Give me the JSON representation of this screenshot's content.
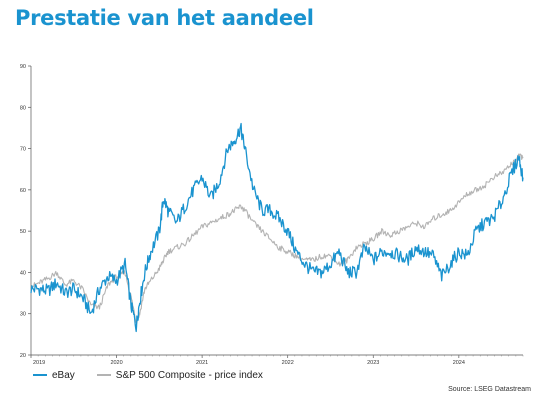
{
  "page": {
    "title": "Prestatie van het aandeel",
    "source": "Source: LSEG Datastream"
  },
  "chart_data": {
    "type": "line",
    "title": "Prestatie van het aandeel",
    "xlabel": "",
    "ylabel": "",
    "xlim": [
      2019.0,
      2024.75
    ],
    "ylim": [
      20,
      90
    ],
    "yticks": [
      20,
      30,
      40,
      50,
      60,
      70,
      80,
      90
    ],
    "xticks": [
      "2019",
      "2020",
      "2021",
      "2022",
      "2023",
      "2024"
    ],
    "grid": false,
    "legend": "bottom-left",
    "x": [
      2019.0,
      2019.1,
      2019.2,
      2019.3,
      2019.4,
      2019.5,
      2019.6,
      2019.7,
      2019.8,
      2019.9,
      2020.0,
      2020.1,
      2020.17,
      2020.23,
      2020.27,
      2020.33,
      2020.4,
      2020.5,
      2020.55,
      2020.6,
      2020.7,
      2020.8,
      2020.9,
      2021.0,
      2021.1,
      2021.2,
      2021.3,
      2021.38,
      2021.45,
      2021.5,
      2021.6,
      2021.7,
      2021.8,
      2021.9,
      2022.0,
      2022.1,
      2022.2,
      2022.3,
      2022.4,
      2022.5,
      2022.6,
      2022.7,
      2022.8,
      2022.9,
      2023.0,
      2023.1,
      2023.2,
      2023.3,
      2023.4,
      2023.5,
      2023.6,
      2023.7,
      2023.8,
      2023.9,
      2024.0,
      2024.1,
      2024.2,
      2024.3,
      2024.4,
      2024.5,
      2024.6,
      2024.7,
      2024.75
    ],
    "series": [
      {
        "name": "eBay",
        "color": "#1a93cf",
        "values": [
          36,
          36,
          35.5,
          37.5,
          35,
          36,
          34,
          30,
          36,
          39,
          38,
          42,
          32,
          27,
          33,
          40,
          45,
          50,
          58,
          55,
          52,
          56,
          60,
          63,
          58,
          62,
          70,
          72,
          75,
          70,
          60,
          55,
          55,
          53,
          50,
          45,
          42,
          40,
          40,
          42,
          45,
          40,
          40,
          46,
          43,
          45,
          45,
          44,
          43,
          46,
          45,
          44,
          39,
          42,
          45,
          44,
          50,
          52,
          53,
          57,
          63,
          68,
          63
        ]
      },
      {
        "name": "S&P 500 Composite - price index",
        "color": "#b3b3b3",
        "values": [
          36.5,
          37.5,
          38.5,
          40,
          37,
          38,
          36,
          32,
          31.5,
          37,
          39,
          40,
          34,
          28,
          30,
          36,
          38,
          41,
          43,
          45,
          46,
          47,
          49,
          51,
          52,
          53,
          54,
          55,
          56,
          55,
          52,
          50,
          48,
          46,
          45,
          44,
          43,
          43,
          44,
          44,
          42,
          43,
          46,
          47,
          48,
          50,
          49,
          50,
          51,
          52,
          51,
          53,
          54,
          55,
          57,
          59,
          60,
          61,
          63,
          64,
          66,
          68,
          68
        ]
      }
    ]
  }
}
